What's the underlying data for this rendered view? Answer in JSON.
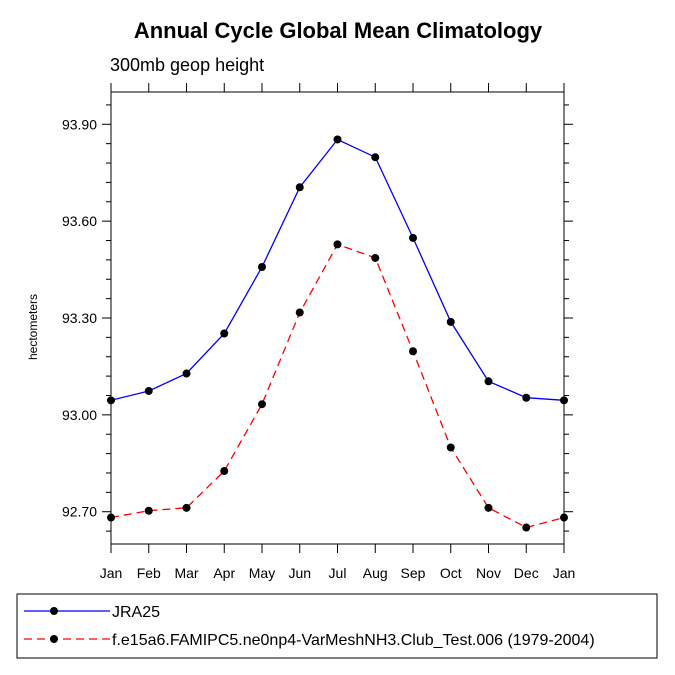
{
  "chart_data": {
    "type": "line",
    "title": "Annual Cycle Global Mean Climatology",
    "subtitle": "300mb geop height",
    "ylabel": "hectometers",
    "xlabel": "",
    "categories": [
      "Jan",
      "Feb",
      "Mar",
      "Apr",
      "May",
      "Jun",
      "Jul",
      "Aug",
      "Sep",
      "Oct",
      "Nov",
      "Dec",
      "Jan"
    ],
    "yticks": [
      92.7,
      93.0,
      93.3,
      93.6,
      93.9
    ],
    "ytick_labels": [
      "92.70",
      "93.00",
      "93.30",
      "93.60",
      "93.90"
    ],
    "ylim": [
      92.6,
      94.0
    ],
    "grid": false,
    "legend_position": "bottom",
    "series": [
      {
        "name": "JRA25",
        "color": "#0000ff",
        "dash": "solid",
        "marker": "filled-circle",
        "values": [
          93.045,
          93.074,
          93.128,
          93.252,
          93.458,
          93.705,
          93.853,
          93.798,
          93.548,
          93.288,
          93.104,
          93.053,
          93.045
        ]
      },
      {
        "name": "f.e15a6.FAMIPC5.ne0np4-VarMeshNH3.Club_Test.006 (1979-2004)",
        "color": "#ff0000",
        "dash": "dashed",
        "marker": "filled-circle",
        "values": [
          92.682,
          92.703,
          92.712,
          92.826,
          93.033,
          93.317,
          93.528,
          93.486,
          93.197,
          92.899,
          92.712,
          92.651,
          92.682
        ]
      }
    ]
  }
}
